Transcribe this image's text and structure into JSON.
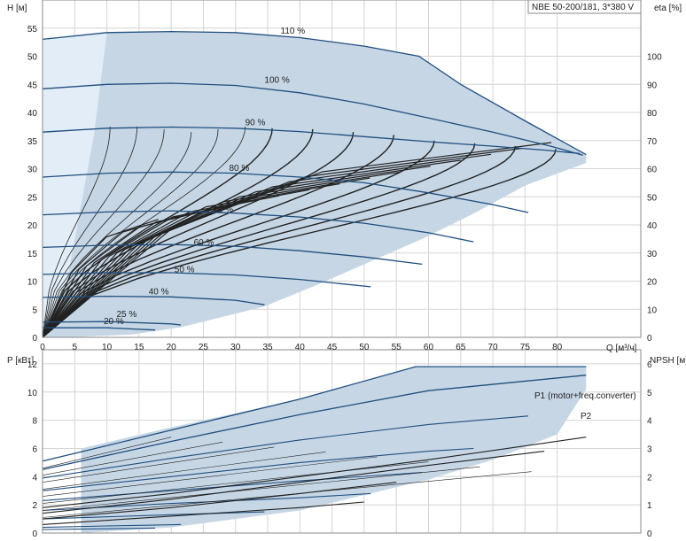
{
  "header": {
    "pump_label": "NBE 50-200/181, 3*380 V"
  },
  "colors": {
    "envelope": "#c6d6e5",
    "envelope_light": "#e2edf7",
    "curve": "#1f4e7f",
    "thin": "#222222",
    "grid": "#d4d4d4",
    "frame": "#8a8a8a"
  },
  "chart_data": [
    {
      "type": "line",
      "title": "",
      "xlabel": "Q [м³/ч]",
      "ylabel": "H [м]",
      "ylabel_right": "eta [%]",
      "xlim": [
        0,
        93
      ],
      "ylim": [
        0,
        60
      ],
      "xticks": [
        0,
        5,
        10,
        15,
        20,
        25,
        30,
        35,
        40,
        45,
        50,
        55,
        60,
        65,
        70,
        75,
        80
      ],
      "yticks": [
        0,
        5,
        10,
        15,
        20,
        25,
        30,
        35,
        40,
        45,
        50,
        55
      ],
      "yticks_right": [
        0,
        10,
        20,
        30,
        40,
        50,
        60,
        70,
        80,
        90,
        100
      ],
      "grid": true,
      "envelope": [
        [
          0,
          53
        ],
        [
          10,
          54.2
        ],
        [
          20,
          54.4
        ],
        [
          30,
          54.2
        ],
        [
          40,
          53.3
        ],
        [
          50,
          51.8
        ],
        [
          58.5,
          50
        ],
        [
          65,
          45
        ],
        [
          75,
          38.5
        ],
        [
          84.5,
          32.5
        ],
        [
          84.5,
          31
        ],
        [
          75,
          27
        ],
        [
          67,
          22
        ],
        [
          59,
          17.5
        ],
        [
          51,
          13.5
        ],
        [
          43,
          9.5
        ],
        [
          34.5,
          5.5
        ],
        [
          21.5,
          1.8
        ],
        [
          14,
          0.5
        ],
        [
          4,
          0
        ],
        [
          0,
          0
        ]
      ],
      "series": [
        {
          "name": "110 %",
          "label_at": [
            37,
            54
          ],
          "points": [
            [
              0,
              53
            ],
            [
              10,
              54.2
            ],
            [
              20,
              54.4
            ],
            [
              30,
              54.2
            ],
            [
              40,
              53.3
            ],
            [
              50,
              51.8
            ],
            [
              58.5,
              50
            ],
            [
              65,
              45
            ],
            [
              75,
              38.5
            ],
            [
              84.5,
              32.5
            ]
          ]
        },
        {
          "name": "100 %",
          "label_at": [
            34.5,
            45.3
          ],
          "points": [
            [
              0,
              44.2
            ],
            [
              10,
              45
            ],
            [
              20,
              45.2
            ],
            [
              30,
              44.8
            ],
            [
              40,
              43.5
            ],
            [
              50,
              41.5
            ],
            [
              60,
              39
            ],
            [
              70,
              36.5
            ],
            [
              79,
              34
            ],
            [
              84,
              32.4
            ]
          ]
        },
        {
          "name": "90 %",
          "label_at": [
            31.5,
            37.7
          ],
          "points": [
            [
              0,
              36.5
            ],
            [
              10,
              37.2
            ],
            [
              20,
              37.4
            ],
            [
              30,
              37.2
            ],
            [
              40,
              36.6
            ],
            [
              50,
              35.7
            ],
            [
              60,
              34.8
            ],
            [
              70,
              34
            ],
            [
              78,
              33.3
            ],
            [
              83.5,
              32.7
            ]
          ]
        },
        {
          "name": "80 %",
          "label_at": [
            29,
            29.6
          ],
          "points": [
            [
              0,
              28.5
            ],
            [
              10,
              29.2
            ],
            [
              20,
              29.4
            ],
            [
              30,
              29.2
            ],
            [
              40,
              28.5
            ],
            [
              50,
              27.5
            ],
            [
              60,
              25.7
            ],
            [
              70,
              23.6
            ],
            [
              75.5,
              22.2
            ]
          ]
        },
        {
          "name": "70 %",
          "label_at": [
            26.5,
            22.2
          ],
          "points": [
            [
              0,
              21.8
            ],
            [
              10,
              22.3
            ],
            [
              20,
              22.5
            ],
            [
              30,
              22.1
            ],
            [
              40,
              21.4
            ],
            [
              50,
              20.3
            ],
            [
              60,
              18.6
            ],
            [
              67,
              17
            ]
          ]
        },
        {
          "name": "60 %",
          "label_at": [
            23.5,
            16.4
          ],
          "points": [
            [
              0,
              16
            ],
            [
              10,
              16.4
            ],
            [
              20,
              16.5
            ],
            [
              30,
              16.2
            ],
            [
              40,
              15.4
            ],
            [
              50,
              14.3
            ],
            [
              59,
              13
            ]
          ]
        },
        {
          "name": "50 %",
          "label_at": [
            20.5,
            11.6
          ],
          "points": [
            [
              0,
              11.2
            ],
            [
              10,
              11.5
            ],
            [
              20,
              11.5
            ],
            [
              30,
              11.1
            ],
            [
              40,
              10.3
            ],
            [
              51,
              9
            ]
          ]
        },
        {
          "name": "40 %",
          "label_at": [
            16.5,
            7.6
          ],
          "points": [
            [
              0,
              7.1
            ],
            [
              10,
              7.3
            ],
            [
              20,
              7.2
            ],
            [
              30,
              6.6
            ],
            [
              34.5,
              5.8
            ]
          ]
        },
        {
          "name": "25 %",
          "label_at": [
            11.5,
            3.6
          ],
          "points": [
            [
              0,
              2.7
            ],
            [
              10,
              2.8
            ],
            [
              20,
              2.4
            ],
            [
              21.5,
              2.2
            ]
          ]
        },
        {
          "name": "20 %",
          "label_at": [
            9.5,
            2.4
          ],
          "points": [
            [
              0,
              1.7
            ],
            [
              10,
              1.7
            ],
            [
              17.5,
              1.3
            ]
          ]
        }
      ],
      "curve_labels": [
        "110 %",
        "100 %",
        "90 %",
        "80 %",
        "70 %",
        "60 %",
        "50 %",
        "40 %",
        "25 %",
        "20 %"
      ]
    },
    {
      "type": "line",
      "title": "",
      "xlabel": "",
      "ylabel": "P [кВт]",
      "ylabel_right": "NPSH [м]",
      "xlim": [
        0,
        93
      ],
      "ylim": [
        0,
        13
      ],
      "yticks": [
        0,
        2,
        4,
        6,
        8,
        10,
        12
      ],
      "yticks_right": [
        0,
        1,
        2,
        3,
        4,
        5,
        6
      ],
      "grid": true,
      "envelope": [
        [
          6,
          6
        ],
        [
          20,
          7.5
        ],
        [
          40,
          9.5
        ],
        [
          58,
          11.8
        ],
        [
          84.5,
          11.8
        ],
        [
          84.5,
          10.2
        ],
        [
          80,
          7
        ],
        [
          70,
          5.2
        ],
        [
          60,
          3.8
        ],
        [
          40,
          1.6
        ],
        [
          20,
          0.4
        ],
        [
          6,
          0
        ]
      ],
      "series": [
        {
          "name": "P1 (motor+freq.converter)",
          "points": [
            [
              0,
              5.1
            ],
            [
              20,
              7.3
            ],
            [
              40,
              9.5
            ],
            [
              58,
              11.8
            ],
            [
              84.5,
              11.8
            ]
          ]
        },
        {
          "name": "P2",
          "points": [
            [
              0,
              4.5
            ],
            [
              20,
              6.5
            ],
            [
              40,
              8.4
            ],
            [
              60,
              10.1
            ],
            [
              84.5,
              11.2
            ]
          ]
        },
        {
          "points": [
            [
              0,
              3.9
            ],
            [
              20,
              5.3
            ],
            [
              40,
              6.6
            ],
            [
              60,
              7.7
            ],
            [
              75.5,
              8.3
            ]
          ]
        },
        {
          "points": [
            [
              0,
              3.0
            ],
            [
              20,
              4.0
            ],
            [
              40,
              5.0
            ],
            [
              60,
              5.8
            ],
            [
              67,
              6
            ]
          ]
        },
        {
          "points": [
            [
              0,
              2.3
            ],
            [
              20,
              3.0
            ],
            [
              40,
              3.7
            ],
            [
              59,
              4.3
            ]
          ]
        },
        {
          "points": [
            [
              0,
              1.6
            ],
            [
              20,
              2.1
            ],
            [
              40,
              2.5
            ],
            [
              51,
              2.8
            ]
          ]
        },
        {
          "points": [
            [
              0,
              1.0
            ],
            [
              20,
              1.3
            ],
            [
              34.5,
              1.5
            ]
          ]
        },
        {
          "points": [
            [
              0,
              0.4
            ],
            [
              10,
              0.5
            ],
            [
              21.5,
              0.6
            ]
          ]
        },
        {
          "points": [
            [
              0,
              0.25
            ],
            [
              10,
              0.3
            ],
            [
              17.5,
              0.35
            ]
          ]
        }
      ],
      "npsh_series": [
        {
          "points": [
            [
              0,
              0.9
            ],
            [
              20,
              1.4
            ],
            [
              40,
              2
            ],
            [
              60,
              2.6
            ],
            [
              84.5,
              3.4
            ]
          ]
        },
        {
          "points": [
            [
              0,
              0.7
            ],
            [
              20,
              1.2
            ],
            [
              40,
              1.8
            ],
            [
              60,
              2.4
            ],
            [
              78,
              2.9
            ]
          ]
        },
        {
          "points": [
            [
              0,
              0.5
            ],
            [
              20,
              0.9
            ],
            [
              40,
              1.4
            ],
            [
              55,
              1.8
            ]
          ]
        },
        {
          "points": [
            [
              0,
              0.3
            ],
            [
              20,
              0.6
            ],
            [
              40,
              0.9
            ],
            [
              50,
              1.1
            ]
          ]
        }
      ]
    }
  ]
}
